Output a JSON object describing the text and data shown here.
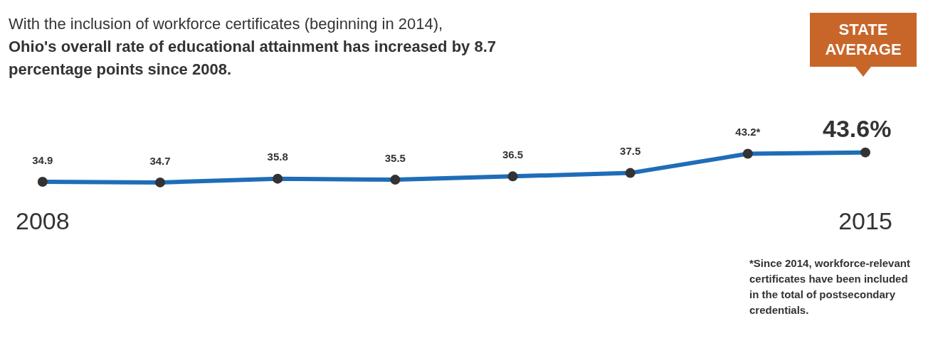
{
  "chart_data": {
    "type": "line",
    "title": "With the inclusion of workforce certificates (beginning in 2014),",
    "subtitle": "Ohio's overall rate of educational attainment has increased by 8.7 percentage points since 2008.",
    "categories": [
      "2008",
      null,
      null,
      null,
      null,
      null,
      null,
      "2015"
    ],
    "series": [
      {
        "color": "#1f6db8",
        "values": [
          34.9,
          34.7,
          35.8,
          35.5,
          36.5,
          37.5,
          43.2,
          43.6
        ],
        "value_labels": [
          "34.9",
          "34.7",
          "35.8",
          "35.5",
          "36.5",
          "37.5",
          "43.2*",
          "43.6%"
        ]
      }
    ],
    "marker": "circle",
    "grid": false,
    "legend": false,
    "tick_labels": "x",
    "annotations": [
      "STATE AVERAGE",
      "*Since 2014, workforce-relevant certificates have been included in the total of postsecondary credentials."
    ]
  }
}
